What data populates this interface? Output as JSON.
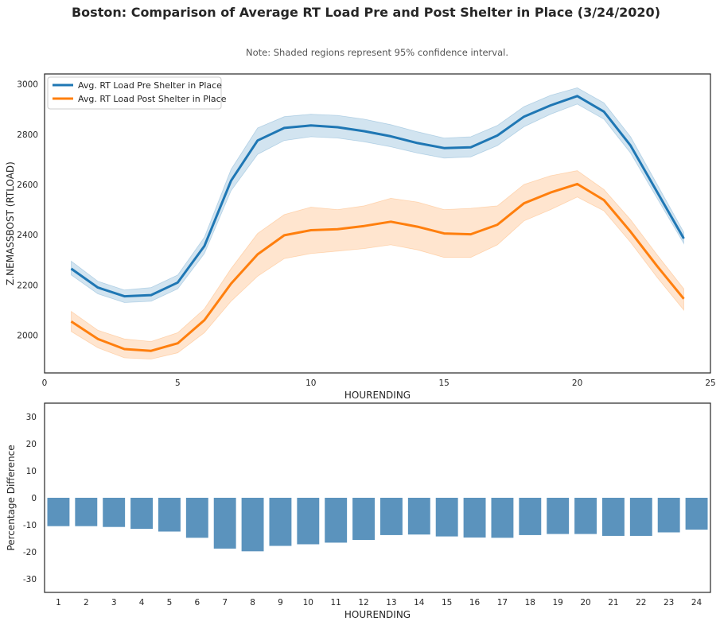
{
  "figure": {
    "title": "Boston: Comparison of Average RT Load Pre and Post Shelter in Place (3/24/2020)",
    "note": "Note: Shaded regions represent 95% confidence interval."
  },
  "colors": {
    "pre": "#1f77b4",
    "post": "#ff7f0e",
    "bar": "#5b93bd"
  },
  "chart_data": [
    {
      "type": "line",
      "xlabel": "HOURENDING",
      "ylabel": "Z.NEMASSBOST (RTLOAD)",
      "xlim": [
        0,
        25
      ],
      "ylim": [
        1850,
        3040
      ],
      "xticks": [
        0,
        5,
        10,
        15,
        20,
        25
      ],
      "yticks": [
        2000,
        2200,
        2400,
        2600,
        2800,
        3000
      ],
      "grid": false,
      "legend": "top-left",
      "x": [
        1,
        2,
        3,
        4,
        5,
        6,
        7,
        8,
        9,
        10,
        11,
        12,
        13,
        14,
        15,
        16,
        17,
        18,
        19,
        20,
        21,
        22,
        23,
        24
      ],
      "series": [
        {
          "name": "Avg. RT Load Pre Shelter in Place",
          "values": [
            2265,
            2190,
            2155,
            2160,
            2210,
            2355,
            2615,
            2775,
            2825,
            2835,
            2828,
            2812,
            2792,
            2765,
            2745,
            2748,
            2795,
            2870,
            2915,
            2952,
            2890,
            2755,
            2570,
            2385
          ],
          "ci_lower": [
            2240,
            2165,
            2130,
            2135,
            2185,
            2325,
            2575,
            2720,
            2775,
            2790,
            2785,
            2770,
            2750,
            2725,
            2705,
            2710,
            2755,
            2830,
            2880,
            2920,
            2860,
            2725,
            2545,
            2365
          ],
          "ci_upper": [
            2295,
            2215,
            2180,
            2190,
            2240,
            2390,
            2660,
            2825,
            2870,
            2880,
            2875,
            2860,
            2838,
            2810,
            2785,
            2790,
            2835,
            2910,
            2955,
            2985,
            2925,
            2790,
            2600,
            2410
          ]
        },
        {
          "name": "Avg. RT Load Post Shelter in Place",
          "values": [
            2055,
            1985,
            1945,
            1938,
            1968,
            2060,
            2205,
            2322,
            2398,
            2418,
            2422,
            2435,
            2452,
            2432,
            2405,
            2402,
            2440,
            2525,
            2568,
            2602,
            2538,
            2412,
            2275,
            2145
          ],
          "ci_lower": [
            2015,
            1950,
            1910,
            1905,
            1930,
            2010,
            2135,
            2235,
            2305,
            2325,
            2335,
            2345,
            2360,
            2340,
            2310,
            2310,
            2360,
            2455,
            2500,
            2550,
            2495,
            2370,
            2230,
            2100
          ],
          "ci_upper": [
            2095,
            2020,
            1985,
            1975,
            2010,
            2105,
            2265,
            2405,
            2480,
            2510,
            2500,
            2515,
            2545,
            2530,
            2500,
            2505,
            2515,
            2600,
            2635,
            2655,
            2580,
            2460,
            2320,
            2185
          ]
        }
      ]
    },
    {
      "type": "bar",
      "xlabel": "HOURENDING",
      "ylabel": "Percentage Difference",
      "ylim": [
        -35,
        35
      ],
      "yticks": [
        -30,
        -20,
        -10,
        0,
        10,
        20,
        30
      ],
      "grid": false,
      "categories": [
        "1",
        "2",
        "3",
        "4",
        "5",
        "6",
        "7",
        "8",
        "9",
        "10",
        "11",
        "12",
        "13",
        "14",
        "15",
        "16",
        "17",
        "18",
        "19",
        "20",
        "21",
        "22",
        "23",
        "24"
      ],
      "values": [
        -10.5,
        -10.5,
        -10.8,
        -11.5,
        -12.5,
        -14.8,
        -18.8,
        -19.8,
        -17.8,
        -17.2,
        -16.6,
        -15.6,
        -13.8,
        -13.6,
        -14.3,
        -14.7,
        -14.8,
        -13.8,
        -13.4,
        -13.4,
        -14.1,
        -14.1,
        -12.8,
        -11.8
      ]
    }
  ]
}
